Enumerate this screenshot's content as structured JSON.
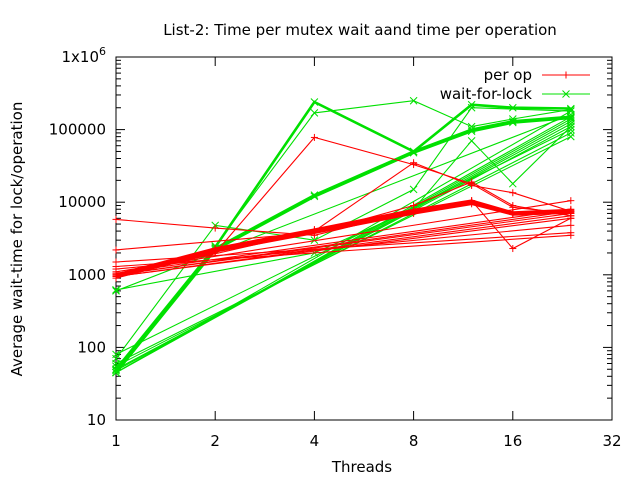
{
  "chart_data": {
    "type": "line",
    "title": "List-2: Time per mutex wait aand time per operation",
    "xlabel": "Threads",
    "ylabel": "Average wait-time for lock/operation",
    "x_scale": "log2",
    "y_scale": "log10",
    "xlim": [
      1,
      32
    ],
    "ylim": [
      10,
      1000000
    ],
    "x_ticks": [
      1,
      2,
      4,
      8,
      16,
      32
    ],
    "y_ticks": [
      10,
      100,
      1000,
      10000,
      100000,
      1000000
    ],
    "y_tick_labels": [
      "10",
      "100",
      "1000",
      "10000",
      "100000",
      "1x10^6"
    ],
    "legend_position": "top-right",
    "series": [
      {
        "name": "per op",
        "color": "#ff0000",
        "marker": "+",
        "runs": [
          {
            "x": [
              1,
              2,
              4,
              8,
              12,
              16,
              24
            ],
            "y": [
              950,
              2200,
              4000,
              7500,
              10000,
              7000,
              7500
            ]
          },
          {
            "x": [
              1,
              2,
              4,
              8,
              12,
              16,
              24
            ],
            "y": [
              950,
              2100,
              3800,
              7000,
              9500,
              6800,
              7200
            ]
          },
          {
            "x": [
              1,
              2,
              4,
              8,
              12,
              16,
              24
            ],
            "y": [
              1000,
              2300,
              4200,
              7800,
              10500,
              7200,
              7800
            ]
          },
          {
            "x": [
              1,
              4,
              8,
              12,
              16,
              24
            ],
            "y": [
              950,
              4000,
              35000,
              17000,
              13500,
              7500
            ]
          },
          {
            "x": [
              1,
              2,
              4,
              8,
              12,
              16,
              24
            ],
            "y": [
              900,
              2000,
              78000,
              33000,
              18000,
              8500,
              7000
            ]
          },
          {
            "x": [
              1,
              4,
              8,
              12,
              16,
              24
            ],
            "y": [
              2200,
              3800,
              9000,
              19000,
              9000,
              6500
            ]
          },
          {
            "x": [
              1,
              2,
              4,
              8,
              12,
              16,
              24
            ],
            "y": [
              5800,
              4400,
              3500,
              7500,
              10500,
              2300,
              6000
            ]
          },
          {
            "x": [
              1,
              24
            ],
            "y": [
              950,
              6000
            ]
          },
          {
            "x": [
              1,
              24
            ],
            "y": [
              950,
              6500
            ]
          },
          {
            "x": [
              1,
              24
            ],
            "y": [
              1000,
              7000
            ]
          },
          {
            "x": [
              1,
              24
            ],
            "y": [
              1000,
              7500
            ]
          },
          {
            "x": [
              1,
              24
            ],
            "y": [
              1050,
              8000
            ]
          },
          {
            "x": [
              1,
              24
            ],
            "y": [
              1100,
              10500
            ]
          },
          {
            "x": [
              1,
              24
            ],
            "y": [
              1200,
              4800
            ]
          },
          {
            "x": [
              1,
              24
            ],
            "y": [
              1300,
              3500
            ]
          },
          {
            "x": [
              1,
              24
            ],
            "y": [
              1500,
              3800
            ]
          }
        ]
      },
      {
        "name": "wait-for-lock",
        "color": "#00e000",
        "marker": "x",
        "runs": [
          {
            "x": [
              1,
              2,
              4,
              8,
              12,
              16,
              24
            ],
            "y": [
              45,
              2300,
              12500,
              50000,
              100000,
              130000,
              150000
            ]
          },
          {
            "x": [
              1,
              2,
              4,
              8,
              12,
              16,
              24
            ],
            "y": [
              45,
              2200,
              12000,
              48000,
              95000,
              125000,
              145000
            ]
          },
          {
            "x": [
              1,
              2,
              4,
              8,
              12,
              16,
              24
            ],
            "y": [
              50,
              2400,
              240000,
              50000,
              220000,
              200000,
              195000
            ]
          },
          {
            "x": [
              1,
              2,
              4,
              8,
              12,
              16,
              24
            ],
            "y": [
              48,
              2500,
              170000,
              250000,
              110000,
              140000,
              190000
            ]
          },
          {
            "x": [
              1,
              4,
              8,
              12,
              16,
              24
            ],
            "y": [
              620,
              2000,
              8000,
              70000,
              18000,
              110000
            ]
          },
          {
            "x": [
              1,
              2,
              4,
              8,
              12,
              24
            ],
            "y": [
              70,
              4800,
              3000,
              15000,
              200000,
              180000
            ]
          },
          {
            "x": [
              1,
              24
            ],
            "y": [
              45,
              180000
            ]
          },
          {
            "x": [
              1,
              24
            ],
            "y": [
              45,
              150000
            ]
          },
          {
            "x": [
              1,
              24
            ],
            "y": [
              45,
              140000
            ]
          },
          {
            "x": [
              1,
              24
            ],
            "y": [
              45,
              130000
            ]
          },
          {
            "x": [
              1,
              24
            ],
            "y": [
              48,
              120000
            ]
          },
          {
            "x": [
              1,
              24
            ],
            "y": [
              50,
              110000
            ]
          },
          {
            "x": [
              1,
              24
            ],
            "y": [
              55,
              90000
            ]
          },
          {
            "x": [
              1,
              24
            ],
            "y": [
              60,
              80000
            ]
          },
          {
            "x": [
              1,
              24
            ],
            "y": [
              80,
              100000
            ]
          },
          {
            "x": [
              1,
              24
            ],
            "y": [
              600,
              160000
            ]
          }
        ]
      }
    ]
  }
}
